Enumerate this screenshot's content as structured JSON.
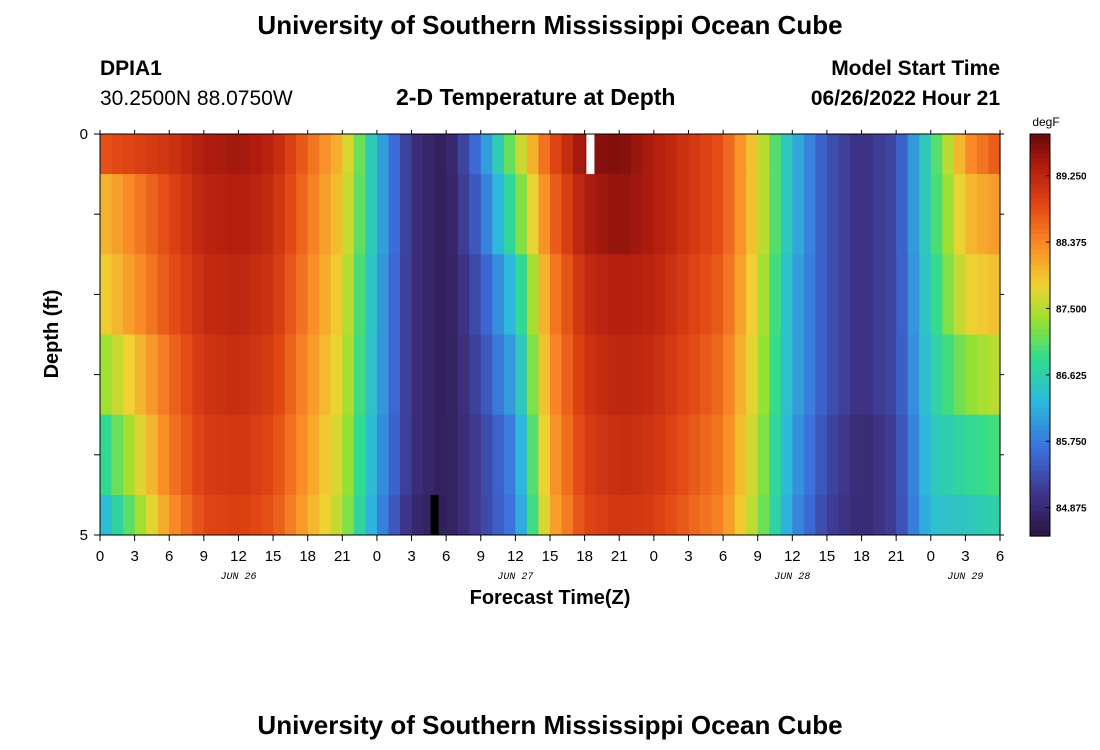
{
  "page": {
    "title": "University of Southern Mississippi Ocean Cube",
    "footer_title": "University of Southern Mississippi Ocean Cube",
    "station": "DPIA1",
    "coords": "30.2500N  88.0750W",
    "plot_title": "2-D Temperature at Depth",
    "model_start_label": "Model Start Time",
    "model_start_value": "06/26/2022 Hour 21"
  },
  "chart_data": {
    "type": "heatmap",
    "title": "2-D Temperature at Depth",
    "xlabel": "Forecast Time(Z)",
    "ylabel": "Depth (ft)",
    "colorbar_unit": "degF",
    "colorbar_ticks": [
      "89.250",
      "88.375",
      "87.500",
      "86.625",
      "85.750",
      "84.875"
    ],
    "colorbar_range": [
      84.5,
      89.8
    ],
    "x_tick_labels": [
      "0",
      "3",
      "6",
      "9",
      "12",
      "15",
      "18",
      "21",
      "0",
      "3",
      "6",
      "9",
      "12",
      "15",
      "18",
      "21",
      "0",
      "3",
      "6",
      "9",
      "12",
      "15",
      "18",
      "21",
      "0",
      "3",
      "6"
    ],
    "day_labels": [
      {
        "label": "JUN 26",
        "hour": 12
      },
      {
        "label": "JUN 27",
        "hour": 36
      },
      {
        "label": "JUN 28",
        "hour": 60
      },
      {
        "label": "JUN 29",
        "hour": 75
      }
    ],
    "x_range_hours": [
      0,
      78
    ],
    "y_tick_labels": [
      "0",
      "5"
    ],
    "y_range_ft": [
      0,
      5
    ],
    "depth_bins_ft": [
      0.25,
      1.25,
      2.25,
      3.25,
      4.25,
      4.75
    ],
    "time_hours": [
      0,
      6,
      9,
      12,
      15,
      21,
      24,
      27,
      30,
      33,
      36,
      39,
      42,
      45,
      48,
      51,
      54,
      57,
      60,
      63,
      66,
      69,
      72,
      75,
      78
    ],
    "temperature_degF": [
      [
        88.8,
        89.1,
        89.4,
        89.5,
        89.3,
        88.0,
        86.3,
        85.0,
        84.7,
        85.8,
        87.4,
        88.8,
        89.6,
        89.7,
        89.4,
        89.1,
        88.8,
        87.8,
        86.3,
        85.4,
        85.0,
        85.3,
        86.8,
        88.3,
        88.8
      ],
      [
        88.0,
        88.9,
        89.3,
        89.4,
        89.2,
        87.9,
        86.3,
        85.0,
        84.7,
        85.6,
        87.0,
        88.6,
        89.4,
        89.6,
        89.4,
        89.1,
        88.8,
        87.8,
        86.3,
        85.4,
        85.0,
        85.3,
        86.8,
        88.0,
        88.3
      ],
      [
        87.8,
        88.8,
        89.2,
        89.3,
        89.1,
        87.8,
        86.2,
        85.0,
        84.7,
        85.4,
        86.5,
        88.4,
        89.2,
        89.4,
        89.3,
        89.0,
        88.7,
        87.7,
        86.2,
        85.4,
        85.0,
        85.3,
        86.7,
        87.8,
        88.0
      ],
      [
        87.3,
        88.6,
        89.1,
        89.2,
        89.0,
        87.7,
        86.2,
        85.0,
        84.7,
        85.3,
        86.2,
        88.3,
        89.1,
        89.3,
        89.2,
        88.9,
        88.6,
        87.6,
        86.2,
        85.4,
        85.0,
        85.3,
        86.6,
        87.3,
        87.6
      ],
      [
        86.7,
        88.5,
        89.0,
        89.1,
        88.9,
        87.6,
        86.1,
        85.0,
        84.7,
        85.2,
        85.9,
        88.2,
        89.0,
        89.2,
        89.1,
        88.8,
        88.5,
        87.5,
        86.1,
        85.3,
        84.9,
        85.2,
        86.5,
        86.8,
        87.0
      ],
      [
        86.2,
        88.3,
        88.9,
        89.0,
        88.8,
        87.5,
        86.0,
        84.9,
        84.7,
        85.2,
        85.8,
        88.1,
        88.9,
        89.1,
        89.0,
        88.7,
        88.4,
        87.4,
        86.0,
        85.2,
        84.9,
        85.2,
        86.4,
        86.5,
        86.7
      ]
    ],
    "missing_cells": [
      {
        "hour": 42.5,
        "depth_row": 0,
        "color": "#ffffff"
      },
      {
        "hour": 29.0,
        "depth_row": 5,
        "color": "#000000"
      }
    ]
  }
}
